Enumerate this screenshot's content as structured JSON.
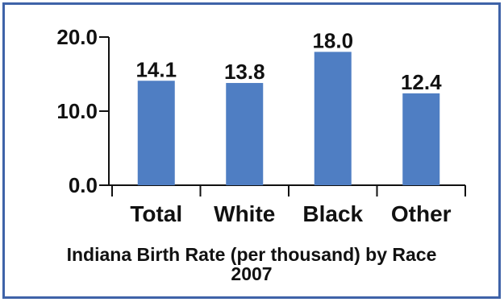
{
  "chart_data": {
    "type": "bar",
    "title": "Indiana Birth Rate (per thousand) by Race",
    "subtitle": "2007",
    "xlabel": "",
    "ylabel": "",
    "categories": [
      "Total",
      "White",
      "Black",
      "Other"
    ],
    "values": [
      14.1,
      13.8,
      18.0,
      12.4
    ],
    "value_labels": [
      "14.1",
      "13.8",
      "18.0",
      "12.4"
    ],
    "ylim": [
      0,
      20
    ],
    "yticks": [
      0,
      10,
      20
    ],
    "ytick_labels": [
      "0.0",
      "10.0",
      "20.0"
    ],
    "grid": false,
    "legend": "none",
    "bar_color": "#4f7ec3",
    "frame_color": "#3f63a8"
  }
}
